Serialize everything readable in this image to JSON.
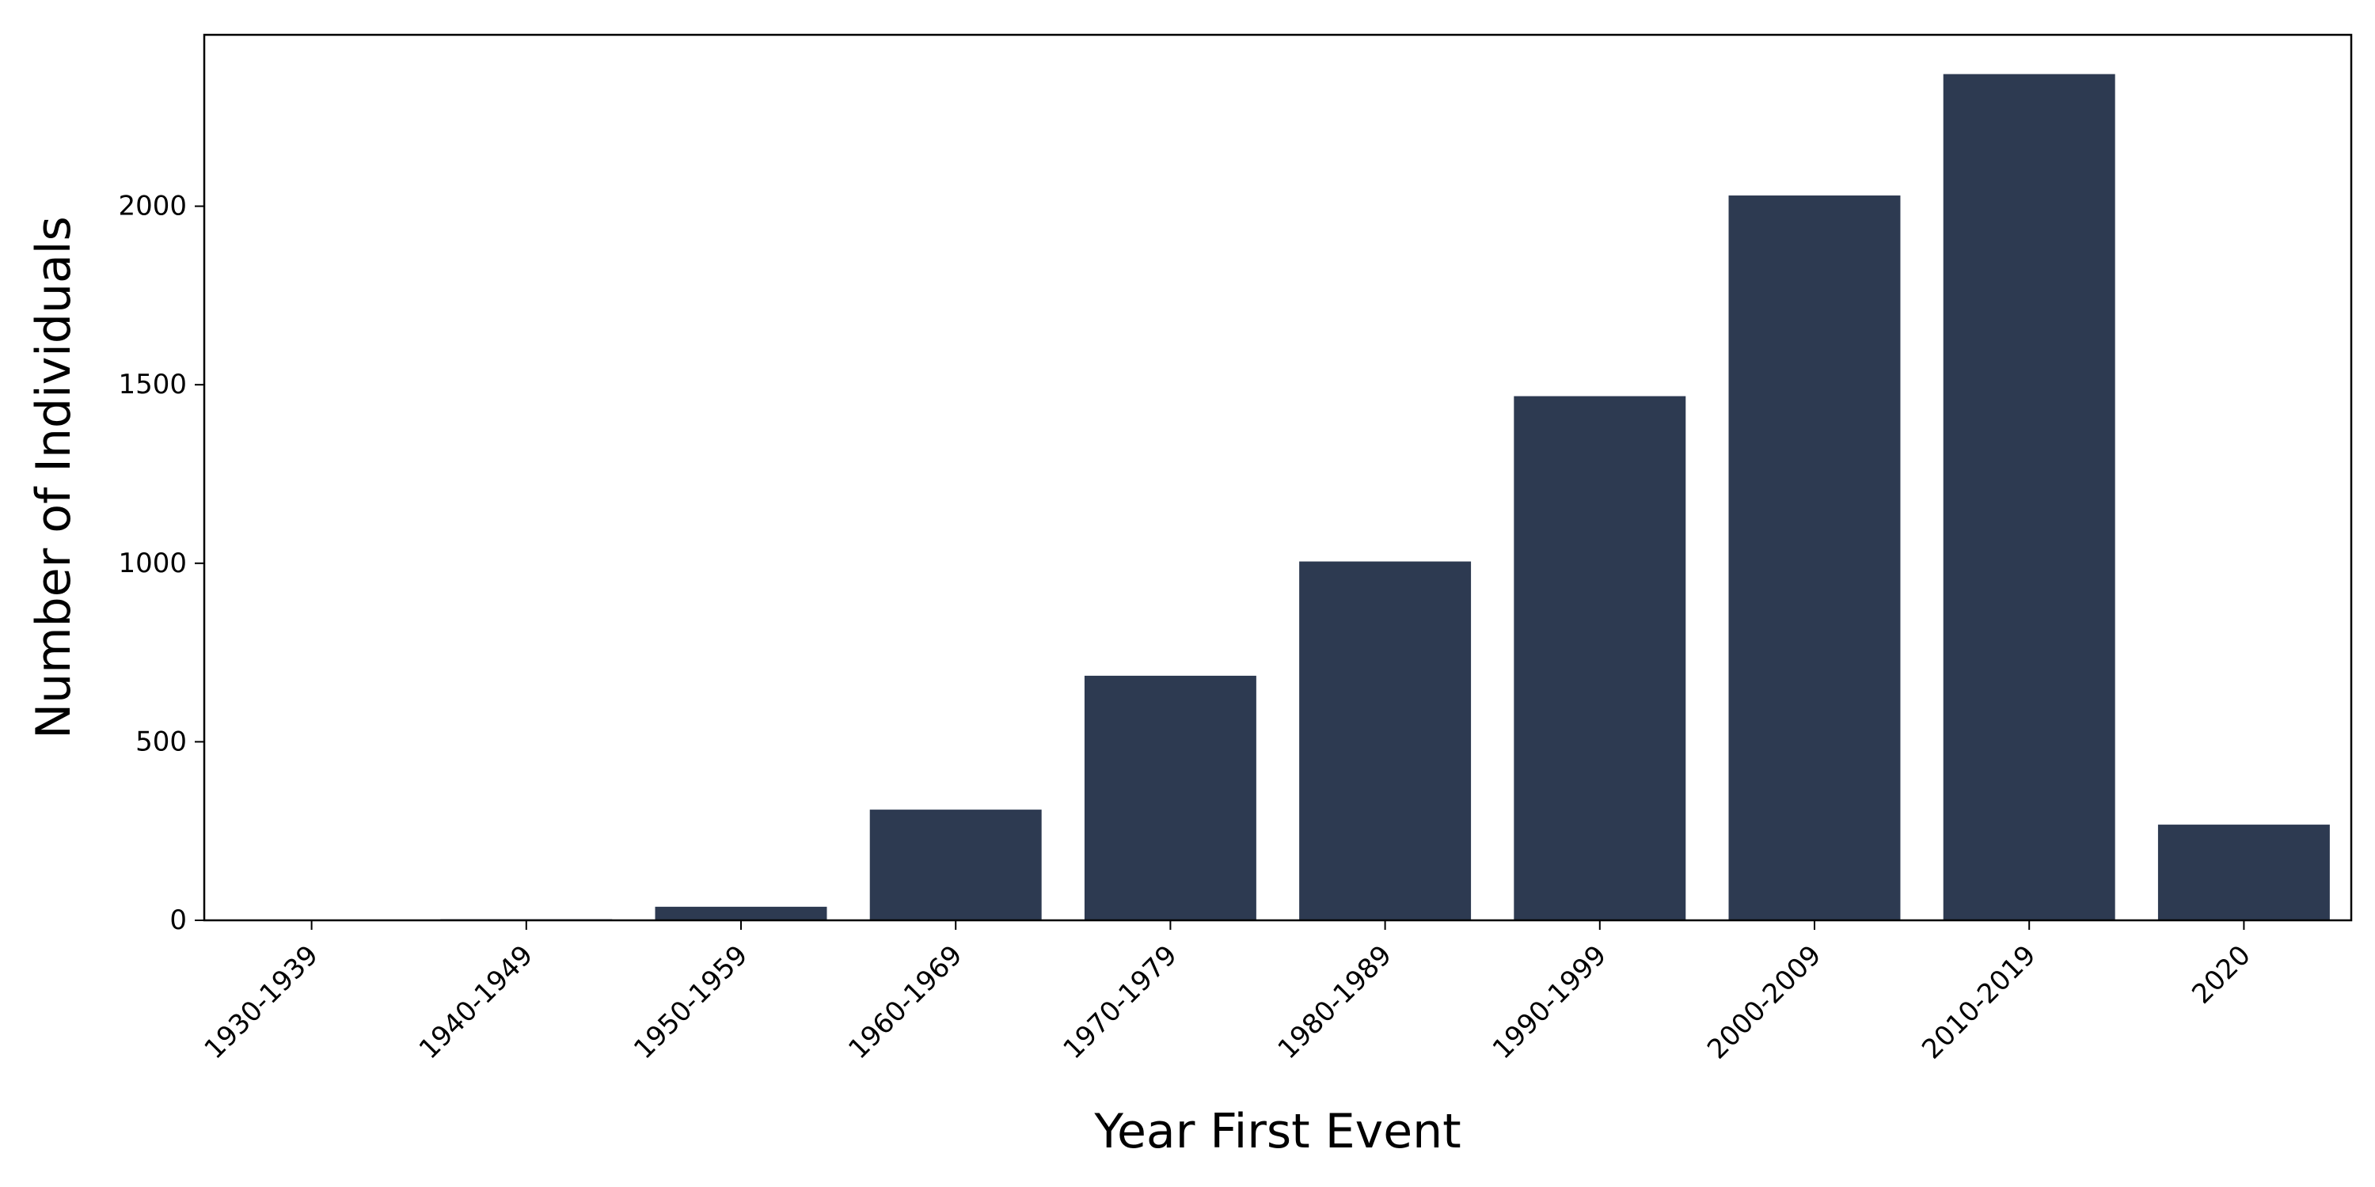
{
  "chart_data": {
    "type": "bar",
    "title": "",
    "xlabel": "Year First Event",
    "ylabel": "Number of Individuals",
    "categories": [
      "1930-1939",
      "1940-1949",
      "1950-1959",
      "1960-1969",
      "1970-1979",
      "1980-1989",
      "1990-1999",
      "2000-2009",
      "2010-2019",
      "2020"
    ],
    "values": [
      2,
      3,
      38,
      310,
      685,
      1005,
      1468,
      2030,
      2370,
      268
    ],
    "ylim": [
      0,
      2480
    ],
    "yticks": [
      0,
      500,
      1000,
      1500,
      2000
    ],
    "bar_color": "#2d3a51",
    "grid": false,
    "legend": "none"
  }
}
